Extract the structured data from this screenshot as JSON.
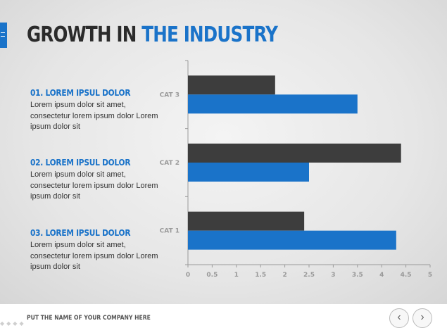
{
  "slide": {
    "title_part1": "GROWTH IN ",
    "title_part2": "THE INDUSTRY",
    "accent_color": "#1a73c9"
  },
  "items": [
    {
      "heading": "01. LOREM IPSUL DOLOR",
      "text": "Lorem ipsum dolor sit amet, consectetur lorem ipsum dolor Lorem ipsum dolor sit"
    },
    {
      "heading": "02. LOREM IPSUL DOLOR",
      "text": "Lorem ipsum dolor sit amet, consectetur lorem ipsum dolor Lorem ipsum dolor sit"
    },
    {
      "heading": "03. LOREM IPSUL DOLOR",
      "text": "Lorem ipsum dolor sit amet, consectetur lorem ipsum dolor Lorem ipsum dolor sit"
    }
  ],
  "footer": {
    "company": "PUT THE NAME OF YOUR COMPANY HERE",
    "prev_icon": "chevron-left-icon",
    "next_icon": "chevron-right-icon"
  },
  "chart_data": {
    "type": "bar",
    "orientation": "horizontal",
    "categories": [
      "CAT 3",
      "CAT 2",
      "CAT 1"
    ],
    "series": [
      {
        "values": [
          1.8,
          4.4,
          2.4
        ],
        "color": "#3d3d3d"
      },
      {
        "values": [
          3.5,
          2.5,
          4.3
        ],
        "color": "#1a73c9"
      }
    ],
    "xlim": [
      0,
      5
    ],
    "xticks": [
      "0",
      "0.5",
      "1",
      "1.5",
      "2",
      "2.5",
      "3",
      "3.5",
      "4",
      "4.5",
      "5"
    ],
    "grid": false,
    "legend": "none"
  }
}
